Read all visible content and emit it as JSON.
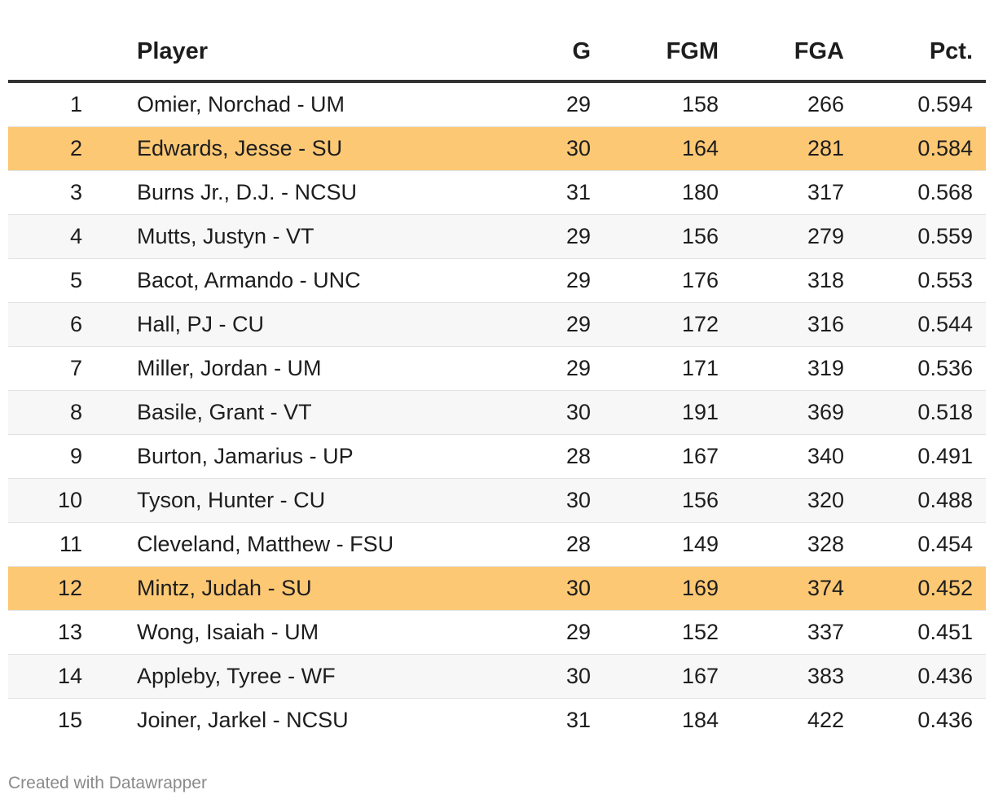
{
  "chart_data": {
    "type": "table",
    "columns": [
      "",
      "Player",
      "G",
      "FGM",
      "FGA",
      "Pct."
    ],
    "rows": [
      {
        "rank": "1",
        "player": "Omier, Norchad - UM",
        "g": "29",
        "fgm": "158",
        "fga": "266",
        "pct": "0.594",
        "highlight": false
      },
      {
        "rank": "2",
        "player": "Edwards, Jesse - SU",
        "g": "30",
        "fgm": "164",
        "fga": "281",
        "pct": "0.584",
        "highlight": true
      },
      {
        "rank": "3",
        "player": "Burns Jr., D.J. - NCSU",
        "g": "31",
        "fgm": "180",
        "fga": "317",
        "pct": "0.568",
        "highlight": false
      },
      {
        "rank": "4",
        "player": "Mutts, Justyn - VT",
        "g": "29",
        "fgm": "156",
        "fga": "279",
        "pct": "0.559",
        "highlight": false
      },
      {
        "rank": "5",
        "player": "Bacot, Armando - UNC",
        "g": "29",
        "fgm": "176",
        "fga": "318",
        "pct": "0.553",
        "highlight": false
      },
      {
        "rank": "6",
        "player": "Hall, PJ - CU",
        "g": "29",
        "fgm": "172",
        "fga": "316",
        "pct": "0.544",
        "highlight": false
      },
      {
        "rank": "7",
        "player": "Miller, Jordan - UM",
        "g": "29",
        "fgm": "171",
        "fga": "319",
        "pct": "0.536",
        "highlight": false
      },
      {
        "rank": "8",
        "player": "Basile, Grant - VT",
        "g": "30",
        "fgm": "191",
        "fga": "369",
        "pct": "0.518",
        "highlight": false
      },
      {
        "rank": "9",
        "player": "Burton, Jamarius - UP",
        "g": "28",
        "fgm": "167",
        "fga": "340",
        "pct": "0.491",
        "highlight": false
      },
      {
        "rank": "10",
        "player": "Tyson, Hunter - CU",
        "g": "30",
        "fgm": "156",
        "fga": "320",
        "pct": "0.488",
        "highlight": false
      },
      {
        "rank": "11",
        "player": "Cleveland, Matthew - FSU",
        "g": "28",
        "fgm": "149",
        "fga": "328",
        "pct": "0.454",
        "highlight": false
      },
      {
        "rank": "12",
        "player": "Mintz, Judah - SU",
        "g": "30",
        "fgm": "169",
        "fga": "374",
        "pct": "0.452",
        "highlight": true
      },
      {
        "rank": "13",
        "player": "Wong, Isaiah - UM",
        "g": "29",
        "fgm": "152",
        "fga": "337",
        "pct": "0.451",
        "highlight": false
      },
      {
        "rank": "14",
        "player": "Appleby, Tyree - WF",
        "g": "30",
        "fgm": "167",
        "fga": "383",
        "pct": "0.436",
        "highlight": false
      },
      {
        "rank": "15",
        "player": "Joiner, Jarkel - NCSU",
        "g": "31",
        "fgm": "184",
        "fga": "422",
        "pct": "0.436",
        "highlight": false
      }
    ],
    "highlight_color": "#fdc874",
    "stripe_color": "#f7f7f7"
  },
  "footer": {
    "credit": "Created with Datawrapper"
  }
}
